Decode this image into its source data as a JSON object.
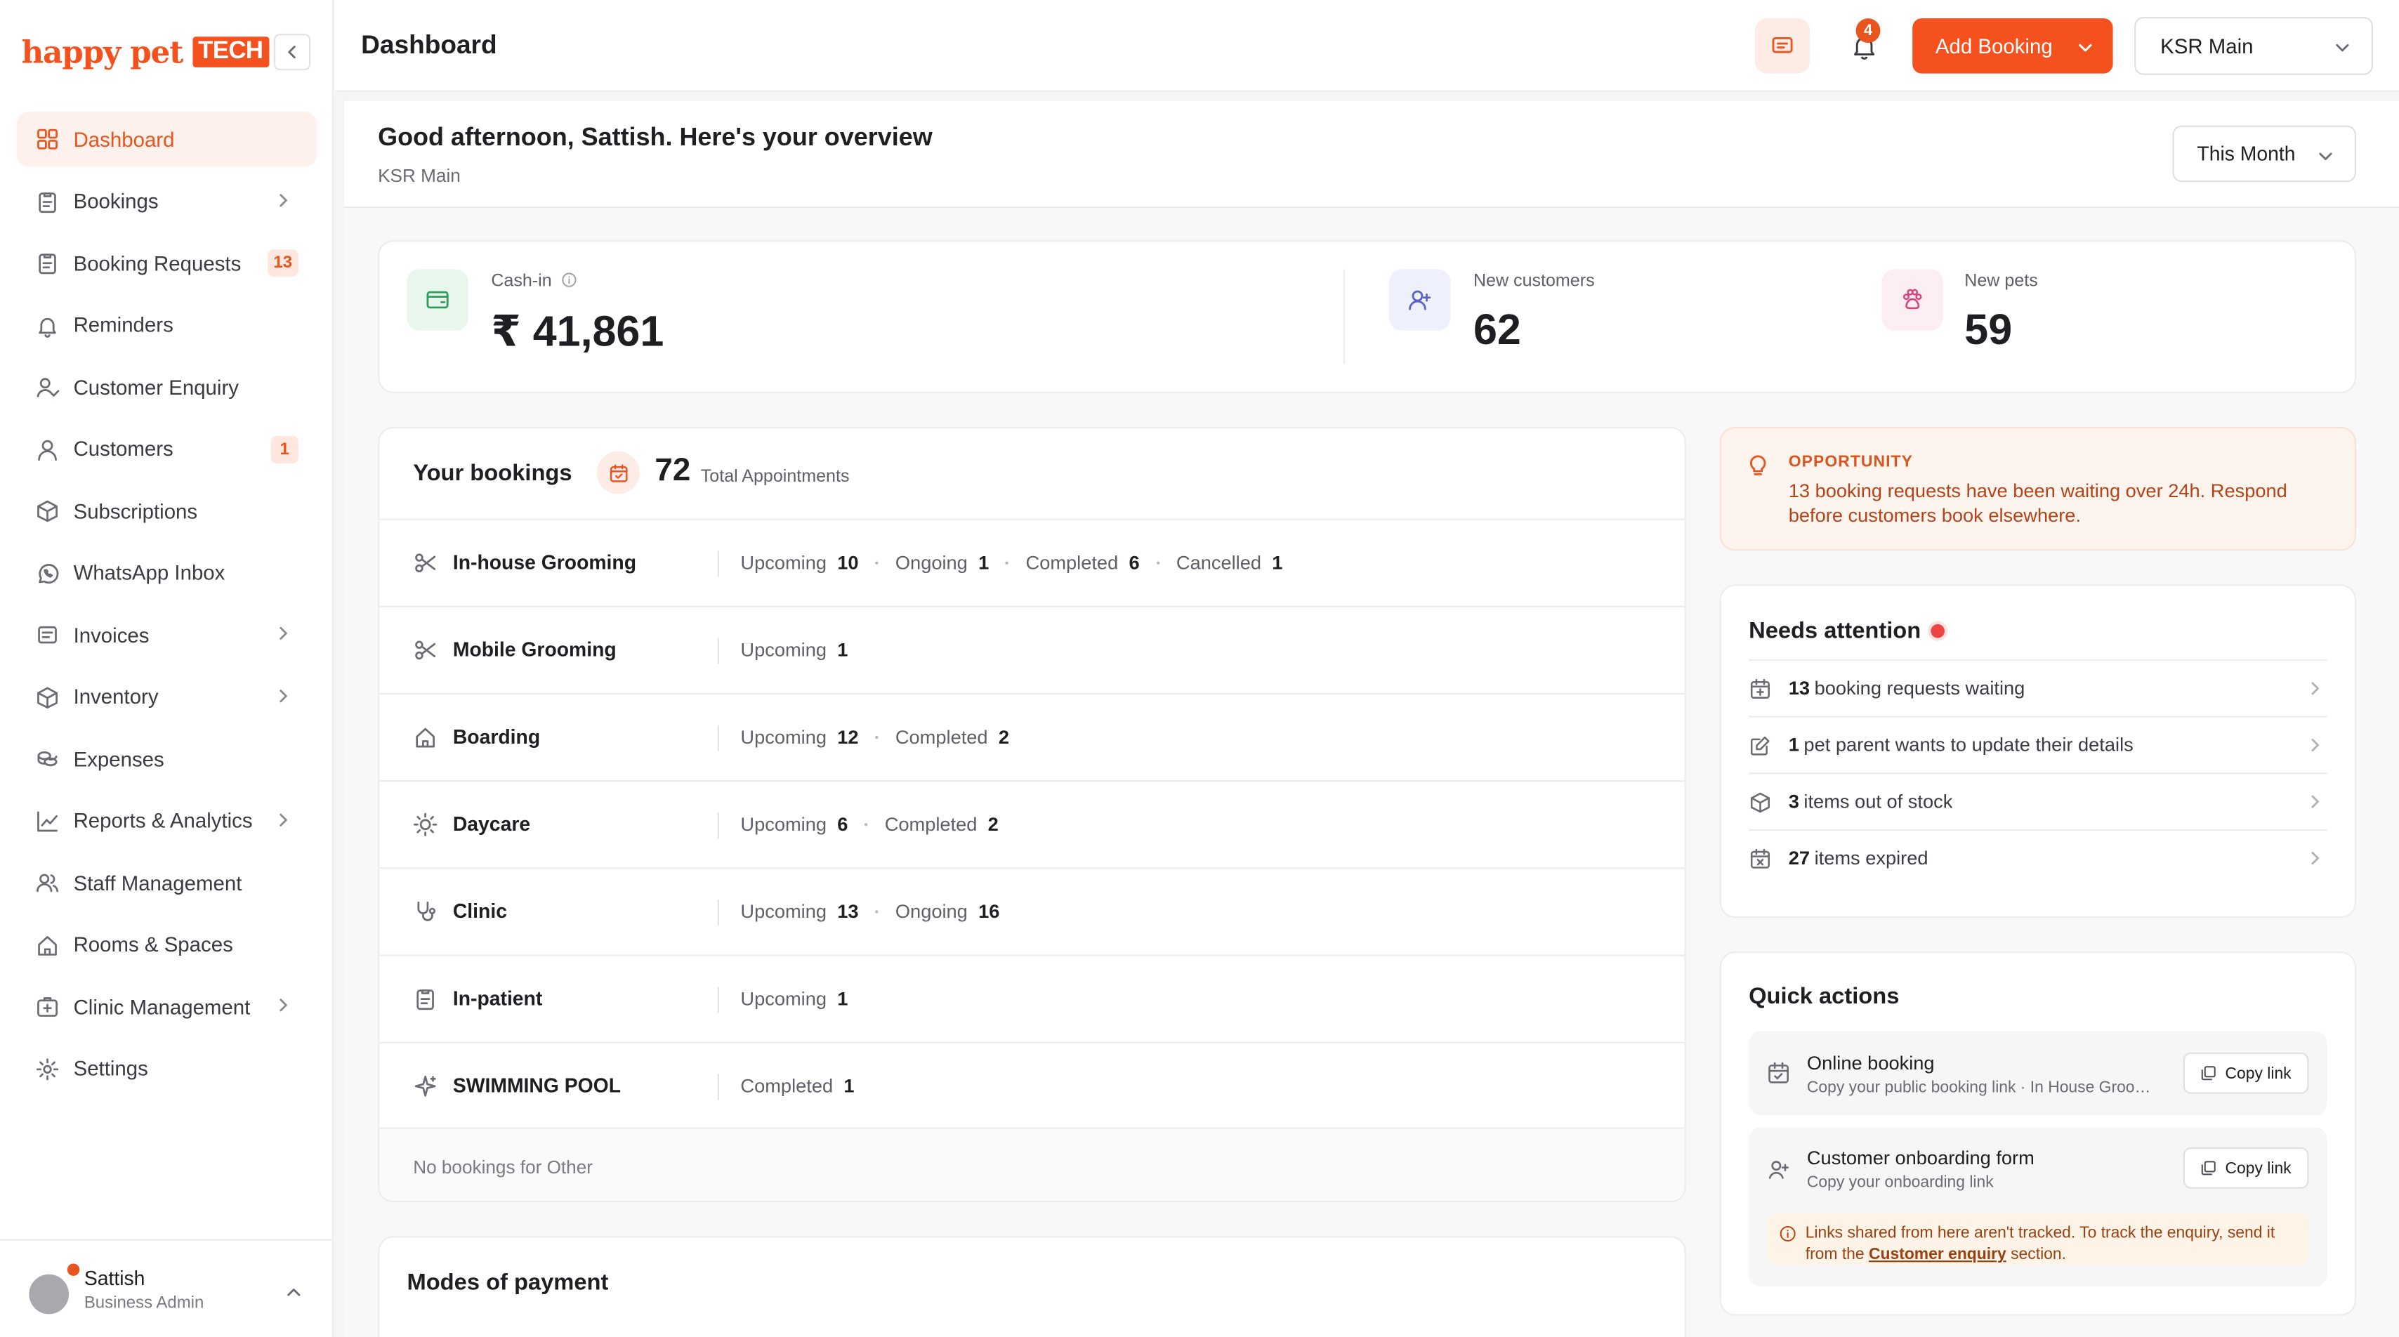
{
  "brand": {
    "name": "happy pet",
    "tag": "TECH"
  },
  "sidebar": {
    "items": [
      {
        "label": "Dashboard",
        "icon": "grid-icon",
        "active": true
      },
      {
        "label": "Bookings",
        "icon": "clipboard-icon",
        "chevron": true
      },
      {
        "label": "Booking Requests",
        "icon": "clipboard-icon",
        "count": "13"
      },
      {
        "label": "Reminders",
        "icon": "bell-icon"
      },
      {
        "label": "Customer Enquiry",
        "icon": "user-check-icon"
      },
      {
        "label": "Customers",
        "icon": "user-icon",
        "count": "1"
      },
      {
        "label": "Subscriptions",
        "icon": "box-icon"
      },
      {
        "label": "WhatsApp Inbox",
        "icon": "whatsapp-icon"
      },
      {
        "label": "Invoices",
        "icon": "receipt-icon",
        "chevron": true
      },
      {
        "label": "Inventory",
        "icon": "box-icon",
        "chevron": true
      },
      {
        "label": "Expenses",
        "icon": "coins-icon"
      },
      {
        "label": "Reports & Analytics",
        "icon": "chart-line-icon",
        "chevron": true
      },
      {
        "label": "Staff Management",
        "icon": "users-icon"
      },
      {
        "label": "Rooms & Spaces",
        "icon": "home-icon"
      },
      {
        "label": "Clinic Management",
        "icon": "medical-kit-icon",
        "chevron": true
      },
      {
        "label": "Settings",
        "icon": "gear-icon"
      }
    ]
  },
  "user": {
    "name": "Sattish",
    "role": "Business Admin"
  },
  "topbar": {
    "title": "Dashboard",
    "notifications": "4",
    "add_booking": "Add Booking",
    "branch": "KSR Main"
  },
  "overview": {
    "greeting": "Good afternoon, Sattish. Here's your overview",
    "branch": "KSR Main",
    "period": "This Month"
  },
  "kpis": {
    "cashin_label": "Cash-in",
    "cashin_value": "₹ 41,861",
    "customers_label": "New customers",
    "customers_value": "62",
    "pets_label": "New pets",
    "pets_value": "59"
  },
  "bookings": {
    "title": "Your bookings",
    "total": "72",
    "total_label": "Total Appointments",
    "rows": [
      {
        "name": "In-house Grooming",
        "icon": "scissors-icon",
        "stats": [
          [
            "Upcoming",
            "10"
          ],
          [
            "Ongoing",
            "1"
          ],
          [
            "Completed",
            "6"
          ],
          [
            "Cancelled",
            "1"
          ]
        ]
      },
      {
        "name": "Mobile Grooming",
        "icon": "scissors-icon",
        "stats": [
          [
            "Upcoming",
            "1"
          ]
        ]
      },
      {
        "name": "Boarding",
        "icon": "home-icon",
        "stats": [
          [
            "Upcoming",
            "12"
          ],
          [
            "Completed",
            "2"
          ]
        ]
      },
      {
        "name": "Daycare",
        "icon": "sun-icon",
        "stats": [
          [
            "Upcoming",
            "6"
          ],
          [
            "Completed",
            "2"
          ]
        ]
      },
      {
        "name": "Clinic",
        "icon": "stethoscope-icon",
        "stats": [
          [
            "Upcoming",
            "13"
          ],
          [
            "Ongoing",
            "16"
          ]
        ]
      },
      {
        "name": "In-patient",
        "icon": "clipboard-icon",
        "stats": [
          [
            "Upcoming",
            "1"
          ]
        ]
      },
      {
        "name": "SWIMMING POOL",
        "icon": "sparkle-icon",
        "stats": [
          [
            "Completed",
            "1"
          ]
        ]
      }
    ],
    "footer": "No bookings for Other"
  },
  "modes": {
    "title": "Modes of payment"
  },
  "opportunity": {
    "title": "OPPORTUNITY",
    "text": "13 booking requests have been waiting over 24h. Respond before customers book elsewhere."
  },
  "attention": {
    "title": "Needs attention",
    "items": [
      {
        "count": "13",
        "text": "booking requests waiting",
        "icon": "calendar-plus-icon"
      },
      {
        "count": "1",
        "text": "pet parent wants to update their details",
        "icon": "edit-icon"
      },
      {
        "count": "3",
        "text": "items out of stock",
        "icon": "box-icon"
      },
      {
        "count": "27",
        "text": "items expired",
        "icon": "calendar-x-icon"
      }
    ]
  },
  "quick_actions": {
    "title": "Quick actions",
    "online_title": "Online booking",
    "online_sub": "Copy your public booking link · In House Grooming",
    "onboard_title": "Customer onboarding form",
    "onboard_sub": "Copy your onboarding link",
    "copy_label": "Copy link",
    "note_before": "Links shared from here aren't tracked. To track the enquiry, send it from the",
    "note_link": "Customer enquiry",
    "note_after": "section."
  },
  "colors": {
    "accent": "#f4511e",
    "accent_soft": "#fef0ea",
    "danger": "#ef4444"
  }
}
